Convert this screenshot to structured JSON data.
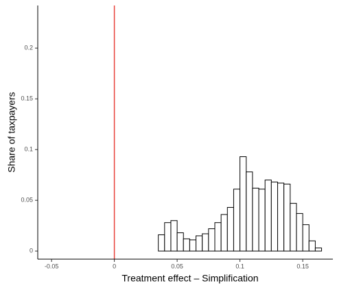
{
  "chart_data": {
    "type": "histogram",
    "xlabel": "Treatment effect – Simplification",
    "ylabel": "Share of taxpayers",
    "bins": [
      -0.05,
      -0.045,
      -0.04,
      -0.035,
      -0.03,
      -0.025,
      -0.02,
      -0.015,
      -0.01,
      -0.005,
      0,
      0.005,
      0.01,
      0.015,
      0.02,
      0.025,
      0.03,
      0.035,
      0.04,
      0.045,
      0.05,
      0.055,
      0.06,
      0.065,
      0.07,
      0.075,
      0.08,
      0.085,
      0.09,
      0.095,
      0.1,
      0.105,
      0.11,
      0.115,
      0.12,
      0.125,
      0.13,
      0.135,
      0.14,
      0.145,
      0.15,
      0.155,
      0.16,
      0.165,
      0.17
    ],
    "values": [
      0,
      0,
      0,
      0,
      0,
      0,
      0,
      0,
      0,
      0,
      0,
      0,
      0,
      0,
      0,
      0,
      0,
      0.016,
      0.028,
      0.03,
      0.018,
      0.012,
      0.011,
      0.015,
      0.017,
      0.022,
      0.028,
      0.036,
      0.043,
      0.061,
      0.093,
      0.078,
      0.062,
      0.061,
      0.07,
      0.068,
      0.067,
      0.066,
      0.047,
      0.037,
      0.026,
      0.01,
      0.003,
      0
    ],
    "color": "#ffffff",
    "edgecolor": "#000000",
    "vline": {
      "x": 0,
      "color": "#e8413a"
    },
    "xlim": [
      -0.061,
      0.174
    ],
    "xticks": [
      -0.05,
      0,
      0.05,
      0.1,
      0.15
    ],
    "ylim": [
      -0.008,
      0.242
    ],
    "yticks": [
      0,
      0.05,
      0.1,
      0.15,
      0.2
    ],
    "grid": false
  }
}
